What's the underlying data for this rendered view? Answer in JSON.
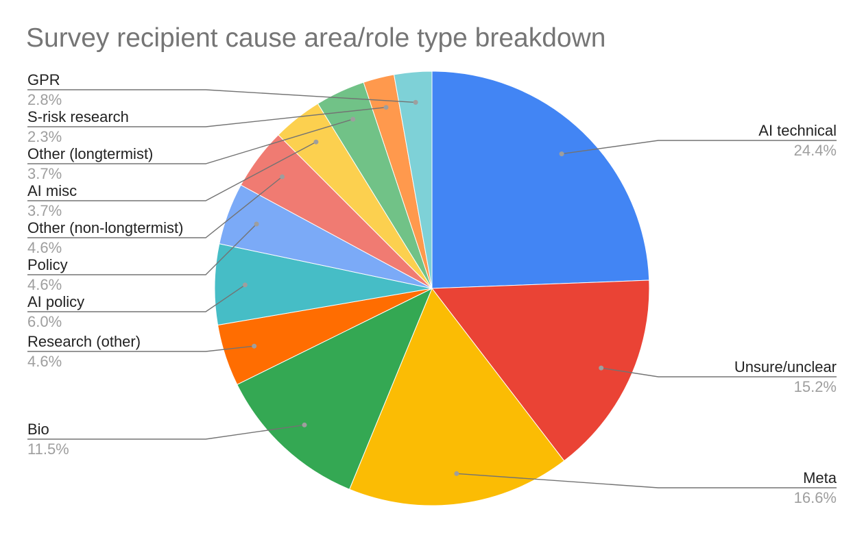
{
  "chart_data": {
    "type": "pie",
    "title": "Survey recipient cause area/role type breakdown",
    "slices": [
      {
        "label": "AI technical",
        "value": 24.4,
        "display": "24.4%",
        "color": "#4285f4"
      },
      {
        "label": "Unsure/unclear",
        "value": 15.2,
        "display": "15.2%",
        "color": "#ea4335"
      },
      {
        "label": "Meta",
        "value": 16.6,
        "display": "16.6%",
        "color": "#fbbc04"
      },
      {
        "label": "Bio",
        "value": 11.5,
        "display": "11.5%",
        "color": "#34a853"
      },
      {
        "label": "Research (other)",
        "value": 4.6,
        "display": "4.6%",
        "color": "#ff6d01"
      },
      {
        "label": "AI policy",
        "value": 6.0,
        "display": "6.0%",
        "color": "#46bdc6"
      },
      {
        "label": "Policy",
        "value": 4.6,
        "display": "4.6%",
        "color": "#7baaf7"
      },
      {
        "label": "Other (non-longtermist)",
        "value": 4.6,
        "display": "4.6%",
        "color": "#f07b72"
      },
      {
        "label": "AI misc",
        "value": 3.7,
        "display": "3.7%",
        "color": "#fcd04f"
      },
      {
        "label": "Other (longtermist)",
        "value": 3.7,
        "display": "3.7%",
        "color": "#71c287"
      },
      {
        "label": "S-risk research",
        "value": 2.3,
        "display": "2.3%",
        "color": "#ff994d"
      },
      {
        "label": "GPR",
        "value": 2.8,
        "display": "2.8%",
        "color": "#7ed1d7"
      }
    ],
    "legend": "none",
    "label_style": "leader-lines"
  }
}
